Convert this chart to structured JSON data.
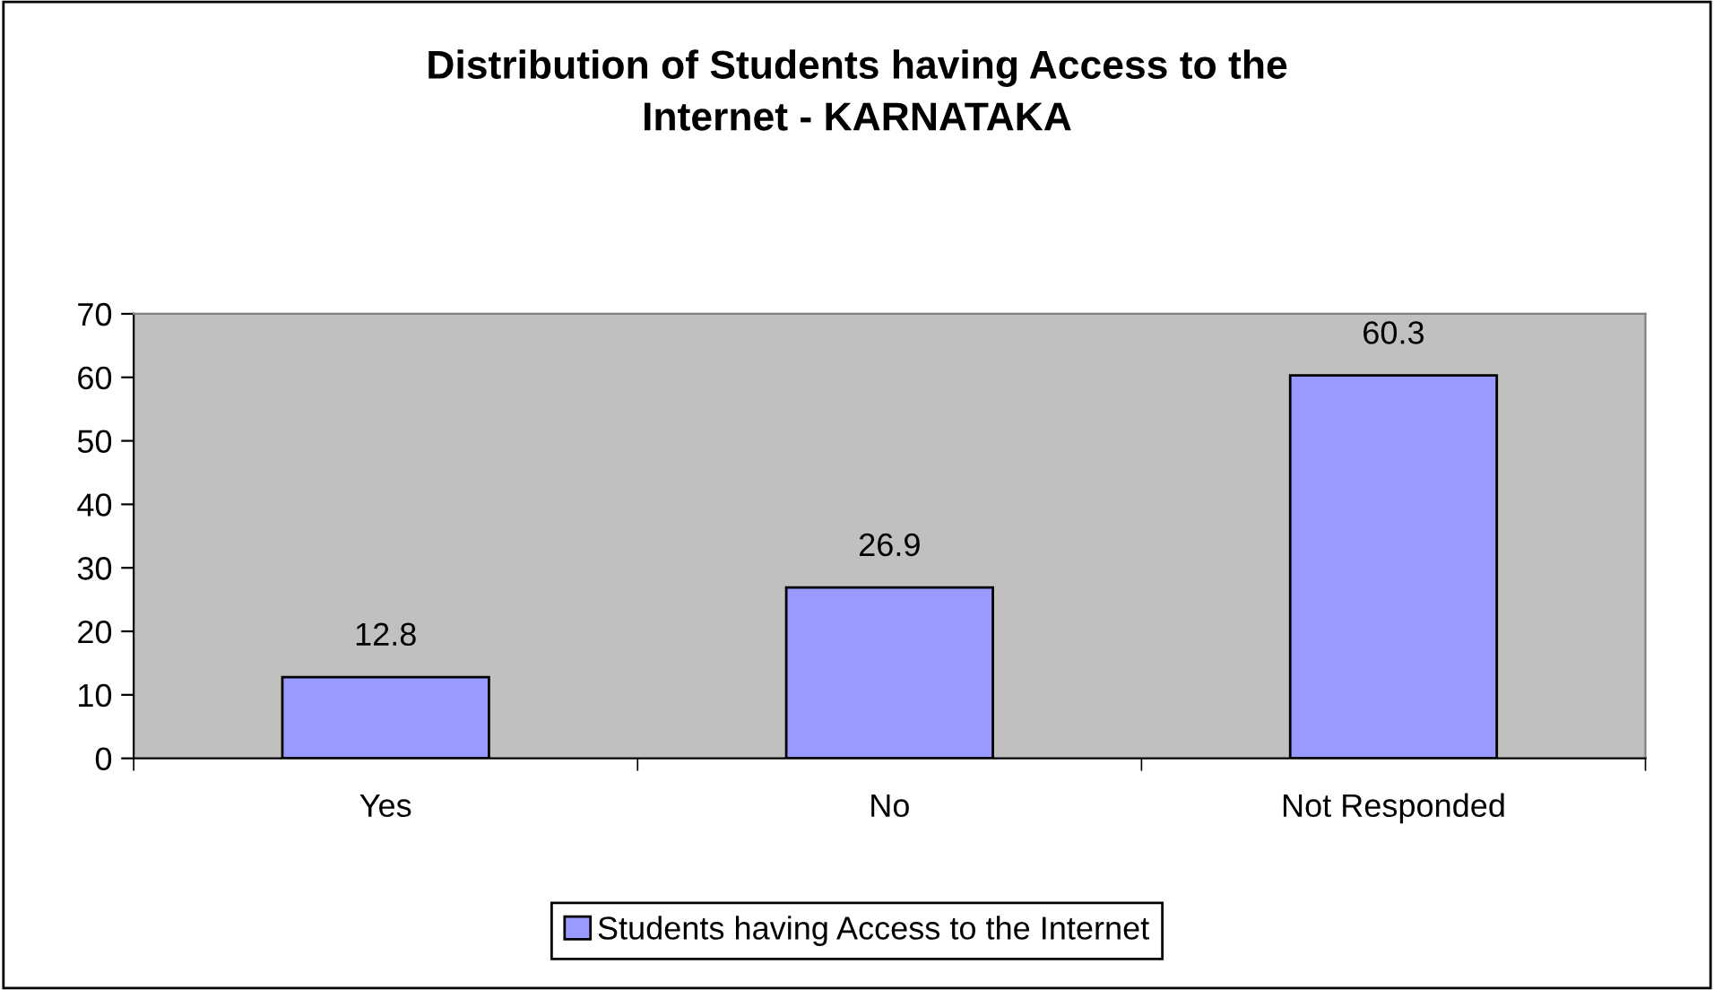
{
  "chart_data": {
    "type": "bar",
    "title": "Distribution of Students having Access to the\nInternet - KARNATAKA",
    "categories": [
      "Yes",
      "No",
      "Not Responded"
    ],
    "series": [
      {
        "name": "Students having Access to the Internet",
        "color": "#9999ff",
        "values": [
          12.8,
          26.9,
          60.3
        ]
      }
    ],
    "ylim": [
      0,
      70
    ],
    "yticks": [
      0,
      10,
      20,
      30,
      40,
      50,
      60,
      70
    ],
    "grid": false,
    "legend": "bottom",
    "data_labels": true
  }
}
